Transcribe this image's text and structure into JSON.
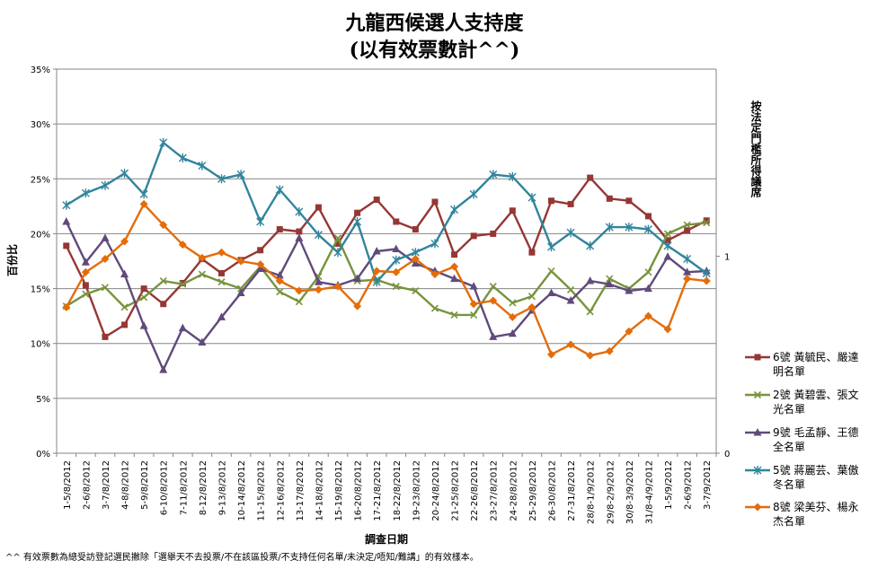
{
  "title": "九龍西候選人支持度",
  "subtitle": "(以有效票數計^^)",
  "footnote": "^^ 有效票數為總受訪登記選民撇除「選舉天不去投票/不在該區投票/不支持任何名單/未決定/唔知/難講」的有效樣本。",
  "chart_data": {
    "type": "line",
    "xlabel": "調查日期",
    "ylabel": "百份比",
    "y2label": "按法定門檻所得議席",
    "ylim": [
      0,
      35
    ],
    "y2lim": [
      0,
      1.95
    ],
    "yticks": [
      "0%",
      "5%",
      "10%",
      "15%",
      "20%",
      "25%",
      "30%",
      "35%"
    ],
    "y2ticks": [
      "0",
      "1"
    ],
    "grid": true,
    "legend_position": "right",
    "categories": [
      "1-5/8/2012",
      "2-6/8/2012",
      "3-7/8/2012",
      "4-8/8/2012",
      "5-9/8/2012",
      "6-10/8/2012",
      "7-11/8/2012",
      "8-12/8/2012",
      "9-13/8/2012",
      "10-14/8/2012",
      "11-15/8/2012",
      "12-16/8/2012",
      "13-17/8/2012",
      "14-18/8/2012",
      "15-19/8/2012",
      "16-20/8/2012",
      "17-21/8/2012",
      "18-22/8/2012",
      "19-23/8/2012",
      "20-24/8/2012",
      "21-25/8/2012",
      "22-26/8/2012",
      "23-27/8/2012",
      "24-28/8/2012",
      "25-29/8/2012",
      "26-30/8/2012",
      "27-31/8/2012",
      "28/8-1/9/2012",
      "29/8-2/9/2012",
      "30/8-3/9/2012",
      "31/8-4/9/2012",
      "1-5/9/2012",
      "2-6/9/2012",
      "3-7/9/2012"
    ],
    "series": [
      {
        "name": "6號 黃毓民、嚴達明名單",
        "color": "#953735",
        "marker": "square",
        "values": [
          18.9,
          15.3,
          10.6,
          11.7,
          15.0,
          13.6,
          15.5,
          17.7,
          16.4,
          17.6,
          18.5,
          20.4,
          20.2,
          22.4,
          19.1,
          21.9,
          23.1,
          21.1,
          20.4,
          22.9,
          18.1,
          19.8,
          20.0,
          22.1,
          18.3,
          23.0,
          22.7,
          25.1,
          23.2,
          23.0,
          21.6,
          19.4,
          20.3,
          21.2
        ]
      },
      {
        "name": "2號 黃碧雲、張文光名單",
        "color": "#77933c",
        "marker": "x",
        "values": [
          13.4,
          14.5,
          15.1,
          13.3,
          14.2,
          15.7,
          15.4,
          16.3,
          15.6,
          15.0,
          17.0,
          14.7,
          13.8,
          16.1,
          19.6,
          15.7,
          15.8,
          15.2,
          14.8,
          13.2,
          12.6,
          12.6,
          15.2,
          13.7,
          14.3,
          16.6,
          14.9,
          12.9,
          15.9,
          15.0,
          16.5,
          20.0,
          20.8,
          21.0
        ]
      },
      {
        "name": "9號 毛孟靜、王德全名單",
        "color": "#604a7b",
        "marker": "triangle",
        "values": [
          21.1,
          17.4,
          19.6,
          16.3,
          11.6,
          7.6,
          11.4,
          10.1,
          12.4,
          14.6,
          16.8,
          16.2,
          19.6,
          15.6,
          15.3,
          15.9,
          18.4,
          18.6,
          17.3,
          16.6,
          15.9,
          15.2,
          10.6,
          10.9,
          13.0,
          14.6,
          13.9,
          15.7,
          15.4,
          14.8,
          15.0,
          17.9,
          16.5,
          16.6
        ]
      },
      {
        "name": "5號 蔣麗芸、葉傲冬名單",
        "color": "#31859c",
        "marker": "star",
        "values": [
          22.6,
          23.7,
          24.4,
          25.5,
          23.6,
          28.3,
          26.9,
          26.2,
          25.0,
          25.4,
          21.1,
          24.0,
          22.0,
          19.9,
          18.3,
          21.1,
          15.6,
          17.6,
          18.3,
          19.1,
          22.2,
          23.6,
          25.4,
          25.2,
          23.3,
          18.8,
          20.1,
          18.9,
          20.6,
          20.6,
          20.4,
          18.9,
          17.7,
          16.4
        ]
      },
      {
        "name": "8號 梁美芬、楊永杰名單",
        "color": "#e46c0a",
        "marker": "diamond",
        "values": [
          13.3,
          16.5,
          17.7,
          19.3,
          22.7,
          20.8,
          19.0,
          17.8,
          18.3,
          17.5,
          17.2,
          15.7,
          14.8,
          14.9,
          15.2,
          13.4,
          16.6,
          16.5,
          17.7,
          16.3,
          17.0,
          13.6,
          13.9,
          12.4,
          13.3,
          9.0,
          9.9,
          8.9,
          9.3,
          11.1,
          12.5,
          11.3,
          15.9,
          15.7
        ]
      }
    ]
  }
}
